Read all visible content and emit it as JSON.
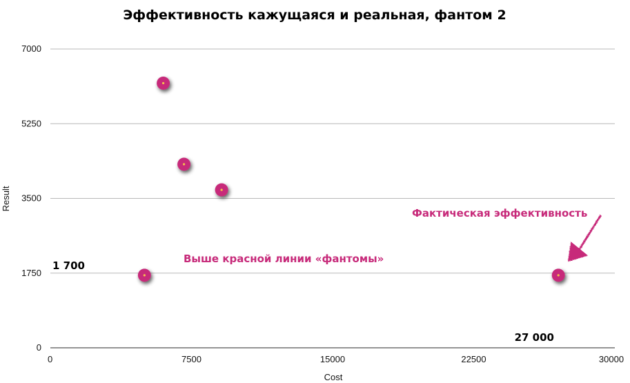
{
  "chart_data": {
    "type": "scatter",
    "title": "Эффективность кажущаяся и реальная, фантом 2",
    "xlabel": "Cost",
    "ylabel": "Result",
    "xlim": [
      0,
      30000
    ],
    "ylim": [
      0,
      7000
    ],
    "x_ticks": [
      0,
      7500,
      15000,
      22500,
      30000
    ],
    "y_ticks": [
      0,
      1750,
      3500,
      5250,
      7000
    ],
    "x_tick_labels": [
      "0",
      "7500",
      "15000",
      "22500",
      "30000"
    ],
    "y_tick_labels": [
      "0",
      "1750",
      "3500",
      "5250",
      "7000"
    ],
    "grid": "horizontal",
    "legend": "none",
    "point_color": "#c72a7a",
    "point_center_color": "#f2c14e",
    "reference_line_color": "#d9312b",
    "points": [
      {
        "x": 6000,
        "y": 6200
      },
      {
        "x": 7100,
        "y": 4300
      },
      {
        "x": 9100,
        "y": 3700
      },
      {
        "x": 5000,
        "y": 1700
      },
      {
        "x": 27000,
        "y": 1700
      }
    ],
    "reference_lines": {
      "horizontal_y": 1700,
      "vertical_x": 27000
    },
    "annotations": {
      "y_value_label": "1 700",
      "x_value_label": "27 000",
      "phantoms_label": "Выше красной линии «фантомы»",
      "actual_label": "Фактическая эффективность"
    }
  }
}
